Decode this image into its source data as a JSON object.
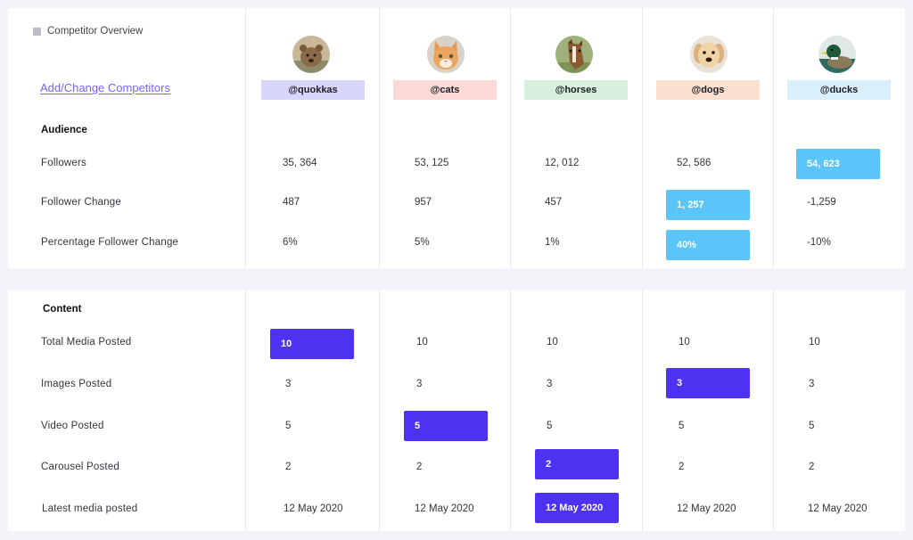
{
  "overview_title": "Competitor Overview",
  "add_link": "Add/Change Competitors",
  "competitors": [
    {
      "handle": "@quokkas",
      "color": "#d9d6fc",
      "avatar": "quokka-avatar"
    },
    {
      "handle": "@cats",
      "color": "#fad9d6",
      "avatar": "cat-avatar"
    },
    {
      "handle": "@horses",
      "color": "#d6f0db",
      "avatar": "horse-avatar"
    },
    {
      "handle": "@dogs",
      "color": "#fbe0d0",
      "avatar": "dog-avatar"
    },
    {
      "handle": "@ducks",
      "color": "#d9effb",
      "avatar": "duck-avatar"
    }
  ],
  "audience": {
    "title": "Audience",
    "rows": [
      {
        "label": "Followers",
        "values": [
          "35, 364",
          "53, 125",
          "12, 012",
          "52, 586",
          "54, 623"
        ],
        "highlight": 4
      },
      {
        "label": "Follower Change",
        "values": [
          "487",
          "957",
          "457",
          "1, 257",
          "-1,259"
        ],
        "highlight": 3
      },
      {
        "label": "Percentage Follower Change",
        "values": [
          "6%",
          "5%",
          "1%",
          "40%",
          "-10%"
        ],
        "highlight": 3
      }
    ]
  },
  "content": {
    "title": "Content",
    "rows": [
      {
        "label": "Total Media Posted",
        "values": [
          "10",
          "10",
          "10",
          "10",
          "10"
        ],
        "highlight": 0
      },
      {
        "label": "Images Posted",
        "values": [
          "3",
          "3",
          "3",
          "3",
          "3"
        ],
        "highlight": 3
      },
      {
        "label": "Video Posted",
        "values": [
          "5",
          "5",
          "5",
          "5",
          "5"
        ],
        "highlight": 1
      },
      {
        "label": "Carousel Posted",
        "values": [
          "2",
          "2",
          "2",
          "2",
          "2"
        ],
        "highlight": 2
      },
      {
        "label": "Latest media posted",
        "values": [
          "12 May 2020",
          "12 May 2020",
          "12 May 2020",
          "12 May 2020",
          "12 May 2020"
        ],
        "highlight": 2
      }
    ]
  },
  "colors": {
    "audience_highlight": "#5bc4f8",
    "content_highlight": "#4d32f2",
    "link": "#7a63f2"
  }
}
